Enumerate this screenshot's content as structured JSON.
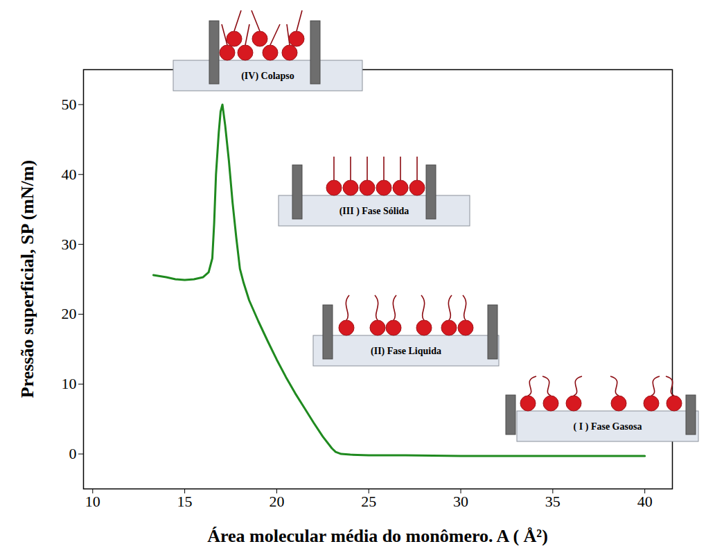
{
  "chart_data": {
    "type": "line",
    "xlabel": "Área molecular média do monômero. A ( Å²)",
    "ylabel": "Pressão superficial, SP (mN/m)",
    "x": [
      40,
      35,
      30,
      27,
      25,
      24,
      23.5,
      23.2,
      23,
      22.5,
      22,
      21.5,
      21,
      20.5,
      20,
      19.5,
      19,
      18.5,
      18.2,
      18,
      17.8,
      17.6,
      17.4,
      17.2,
      17.05,
      16.95,
      16.85,
      16.7,
      16.6,
      16.5,
      16.3,
      16,
      15.5,
      15,
      14.5,
      14,
      13.3
    ],
    "values": [
      -0.3,
      -0.3,
      -0.3,
      -0.2,
      -0.2,
      -0.1,
      0,
      0.3,
      0.8,
      2.5,
      4.5,
      6.6,
      8.7,
      11,
      13.5,
      16.2,
      19,
      22,
      24.5,
      26.5,
      31,
      36,
      42,
      47,
      50,
      49,
      46,
      40,
      33,
      28,
      26,
      25.3,
      25,
      24.9,
      25,
      25.3,
      25.6
    ],
    "color": "#1f8a1f",
    "xlim": [
      9.5,
      41.5
    ],
    "xticks": [
      10,
      15,
      20,
      25,
      30,
      35,
      40
    ],
    "ylim": [
      -5,
      55
    ],
    "yticks": [
      0,
      10,
      20,
      30,
      40,
      50
    ],
    "grid": false,
    "annotations": [
      "( I ) Fase Gasosa",
      "(II) Fase Liquida",
      "(III ) Fase Sólida",
      "(IV) Colapso"
    ]
  }
}
